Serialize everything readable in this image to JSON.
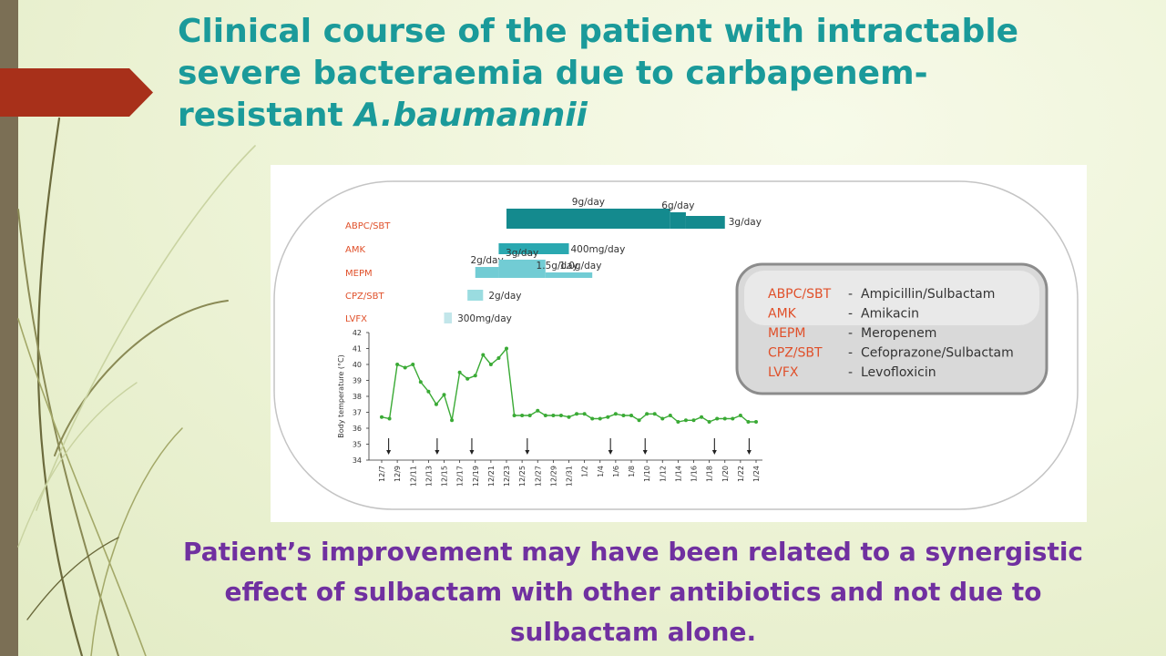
{
  "slide": {
    "title_line1": "Clinical course of the patient with intractable",
    "title_line2": "severe bacteraemia due to carbapenem-",
    "title_line3_plain": "resistant ",
    "title_line3_italic": "A.baumannii",
    "conclusion_line1": "Patient’s improvement may have been related to a synergistic",
    "conclusion_line2": "effect of sulbactam with other antibiotics and not due to",
    "conclusion_line3": "sulbactam alone.",
    "colors": {
      "title": "#1a9a9a",
      "conclusion": "#7030a0",
      "accent_arrow": "#a8301a",
      "drug_code": "#e0502a"
    }
  },
  "treatment": {
    "drugs": [
      {
        "code": "ABPC/SBT",
        "row": 0
      },
      {
        "code": "AMK",
        "row": 1
      },
      {
        "code": "MEPM",
        "row": 2
      },
      {
        "code": "CPZ/SBT",
        "row": 3
      },
      {
        "code": "LVFX",
        "row": 4
      }
    ],
    "bars": [
      {
        "row": 0,
        "start": 16,
        "end": 37,
        "dose": "9g/day",
        "color": "#148a8e"
      },
      {
        "row": 0,
        "start": 37,
        "end": 39,
        "dose": "6g/day",
        "color": "#148a8e"
      },
      {
        "row": 0,
        "start": 39,
        "end": 44,
        "dose": "3g/day",
        "color": "#148a8e"
      },
      {
        "row": 1,
        "start": 15,
        "end": 24,
        "dose": "400mg/day",
        "color": "#2aa8b0"
      },
      {
        "row": 2,
        "start": 12,
        "end": 15,
        "dose": "2g/day",
        "color": "#72ccd4"
      },
      {
        "row": 2,
        "start": 15,
        "end": 21,
        "dose": "3g/day",
        "color": "#72ccd4"
      },
      {
        "row": 2,
        "start": 21,
        "end": 24,
        "dose": "1.5g/day",
        "color": "#72ccd4"
      },
      {
        "row": 2,
        "start": 24,
        "end": 27,
        "dose": "1.0g/day",
        "color": "#72ccd4"
      },
      {
        "row": 3,
        "start": 11,
        "end": 13,
        "dose": "2g/day",
        "color": "#9adce0"
      },
      {
        "row": 4,
        "start": 8,
        "end": 9,
        "dose": "300mg/day",
        "color": "#c2e6ea"
      }
    ]
  },
  "legend": [
    {
      "code": "ABPC/SBT",
      "name": "Ampicillin/Sulbactam"
    },
    {
      "code": "AMK",
      "name": "Amikacin"
    },
    {
      "code": "MEPM",
      "name": "Meropenem"
    },
    {
      "code": "CPZ/SBT",
      "name": "Cefoprazone/Sulbactam"
    },
    {
      "code": "LVFX",
      "name": "Levofloxicin"
    }
  ],
  "chart_data": {
    "type": "line",
    "ylabel": "Body temperature (°C)",
    "ylim": [
      34,
      42
    ],
    "yticks": [
      34,
      35,
      36,
      37,
      38,
      39,
      40,
      41,
      42
    ],
    "xticks": [
      "12/7",
      "12/9",
      "12/11",
      "12/13",
      "12/15",
      "12/17",
      "12/19",
      "12/21",
      "12/23",
      "12/25",
      "12/27",
      "12/29",
      "12/31",
      "1/2",
      "1/4",
      "1/6",
      "1/8",
      "1/10",
      "1/12",
      "1/14",
      "1/16",
      "1/18",
      "1/20",
      "1/22",
      "1/24"
    ],
    "x_index_range": [
      0,
      48
    ],
    "series": [
      {
        "color": "#3aaa35",
        "x": [
          0,
          1,
          2,
          3,
          4,
          5,
          6,
          7,
          8,
          9,
          10,
          11,
          12,
          13,
          14,
          15,
          16,
          17,
          18,
          19,
          20,
          21,
          22,
          23,
          24,
          25,
          26,
          27,
          28,
          29,
          30,
          31,
          32,
          33,
          34,
          35,
          36,
          37,
          38,
          39,
          40,
          41,
          42,
          43,
          44,
          45,
          46,
          47,
          48
        ],
        "values": [
          36.7,
          36.6,
          40.0,
          39.8,
          40.0,
          38.9,
          38.3,
          37.5,
          38.1,
          36.5,
          39.5,
          39.1,
          39.3,
          40.6,
          40.0,
          40.4,
          41.0,
          36.8,
          36.8,
          36.8,
          37.1,
          36.8,
          36.8,
          36.8,
          36.7,
          36.9,
          36.9,
          36.6,
          36.6,
          36.7,
          36.9,
          36.8,
          36.8,
          36.5,
          36.9,
          36.9,
          36.6,
          36.8,
          36.4,
          36.5,
          36.5,
          36.7,
          36.4,
          36.6,
          36.6,
          36.6,
          36.8,
          36.4,
          36.4
        ]
      }
    ],
    "arrow_x_indices": [
      1,
      8,
      13,
      21,
      33,
      38,
      48,
      53
    ]
  }
}
